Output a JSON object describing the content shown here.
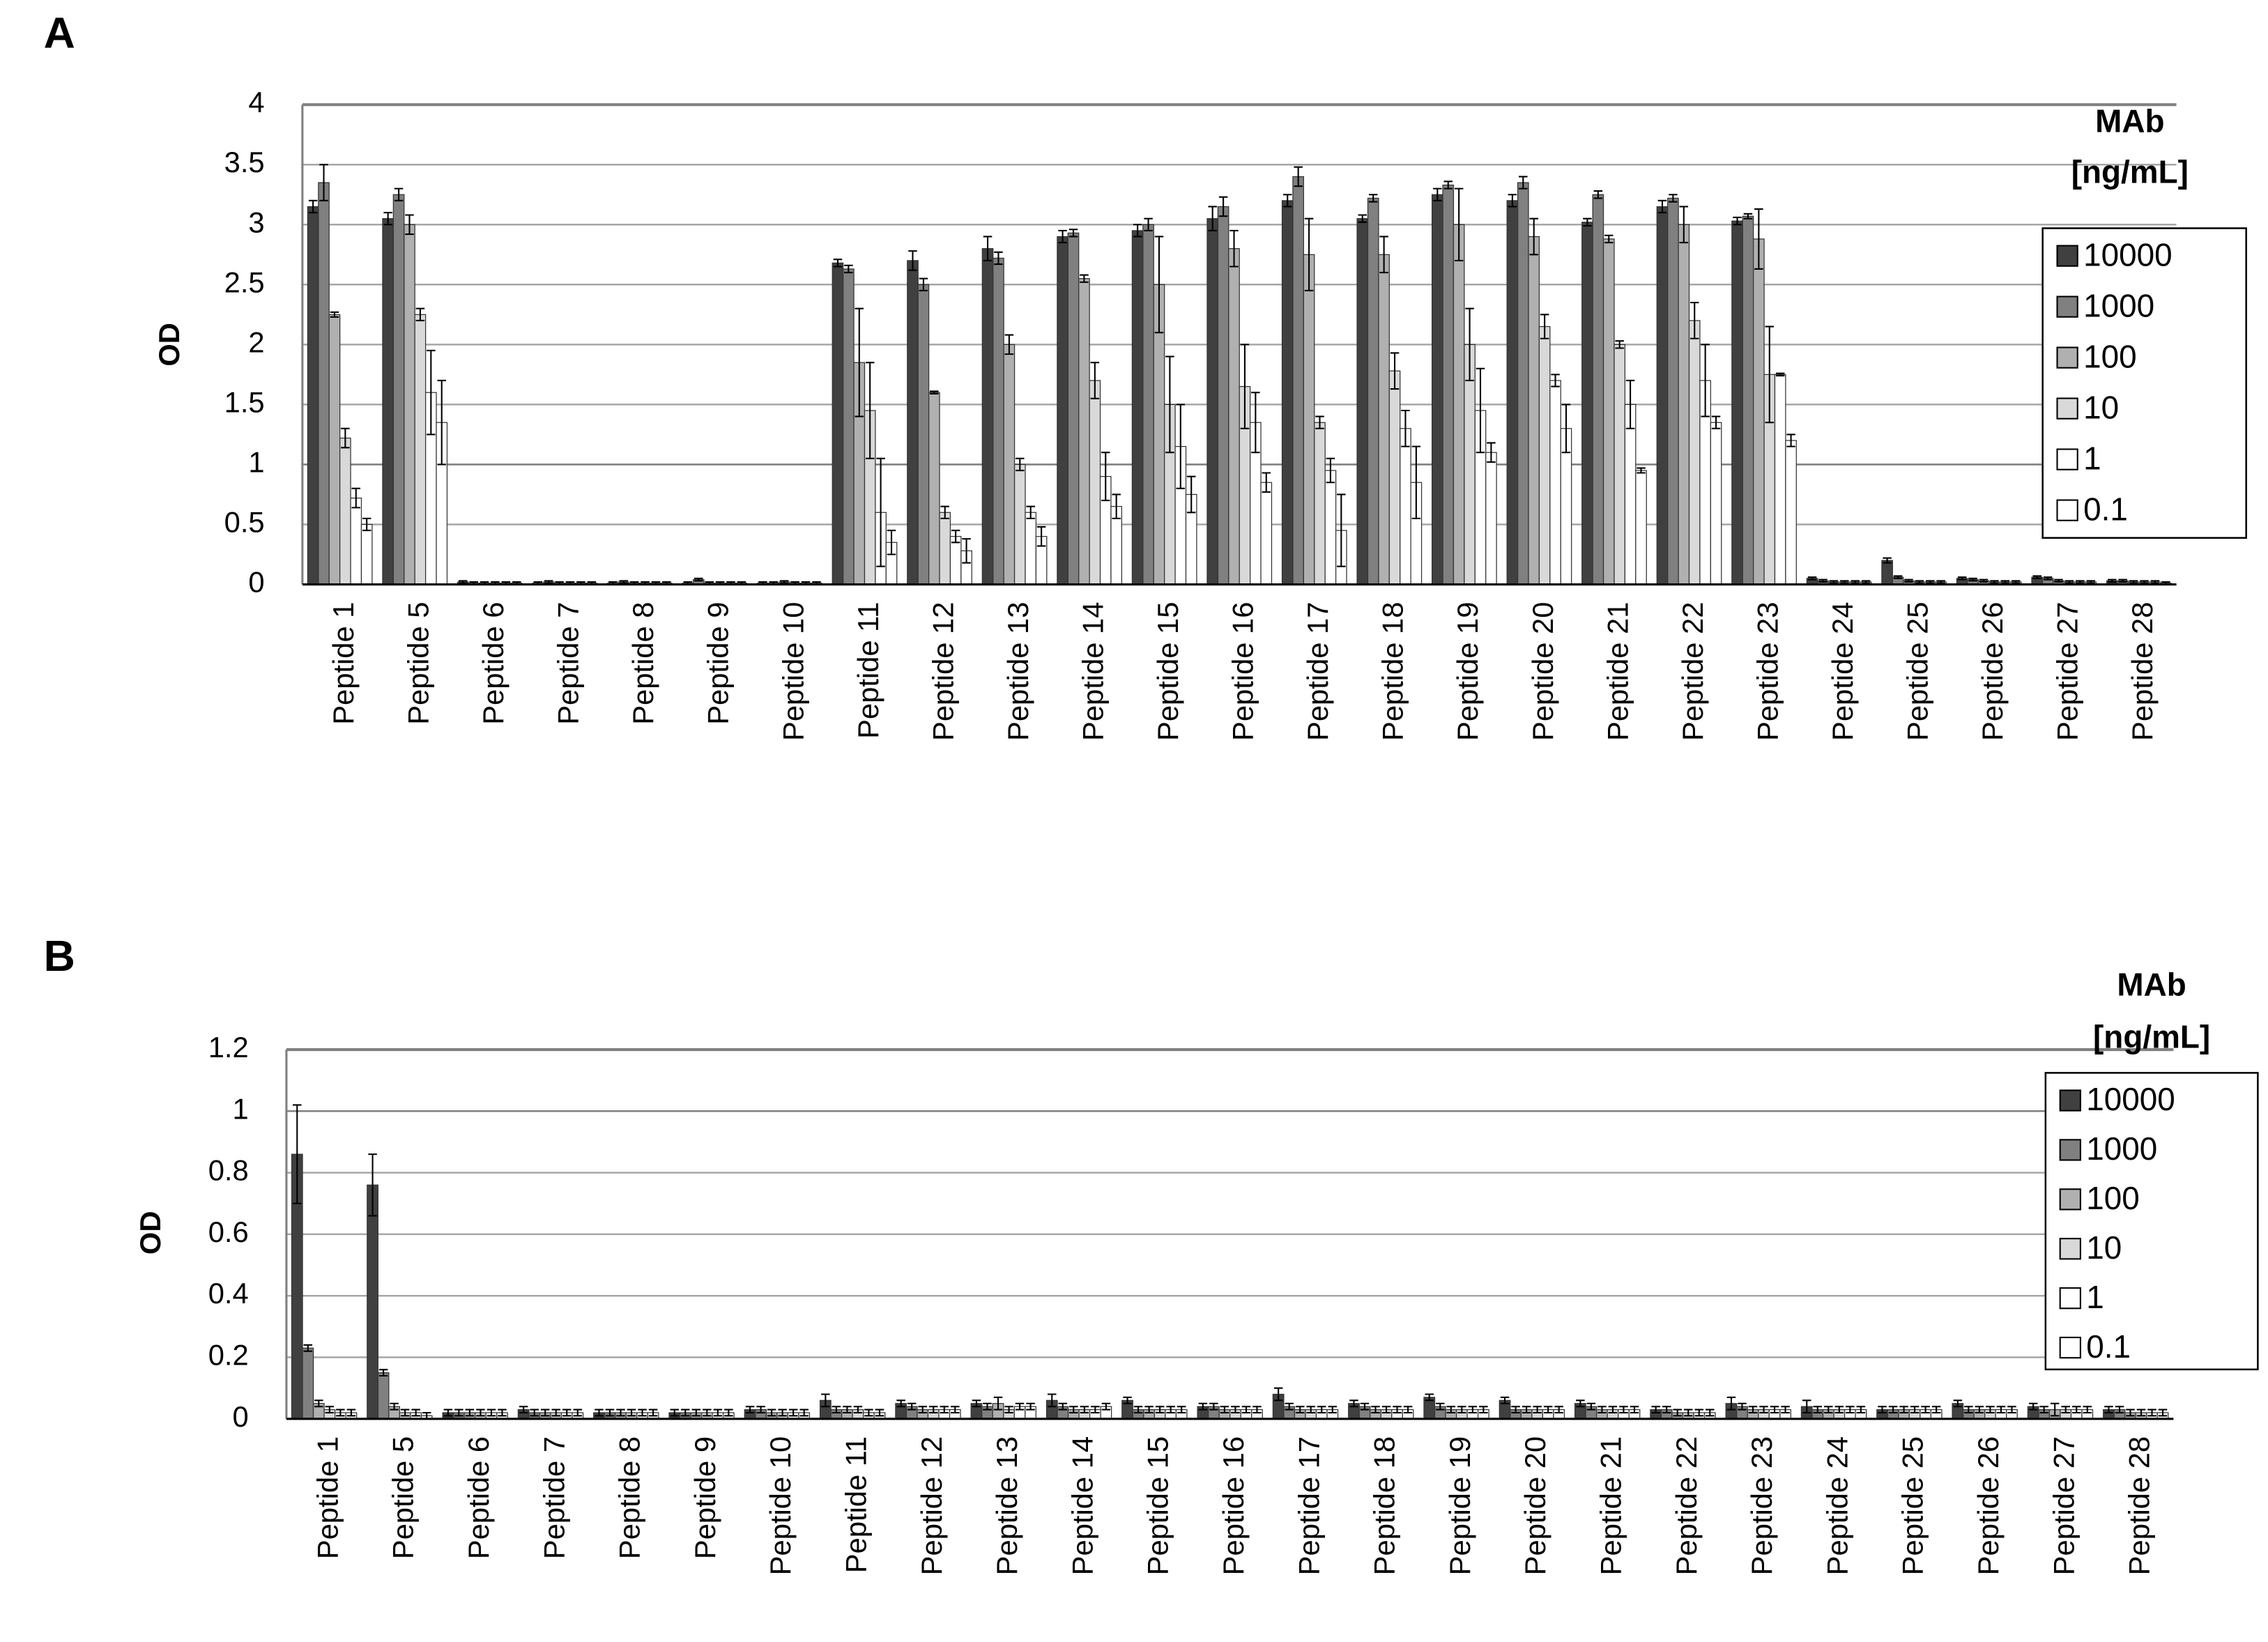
{
  "chart_data": [
    {
      "type": "bar",
      "panel": "A",
      "y_label": "OD",
      "legend_title": [
        "MAb",
        "[ng/mL]"
      ],
      "grid": true,
      "legend": "right",
      "categories": [
        "Peptide 1",
        "Peptide 5",
        "Peptide 6",
        "Peptide 7",
        "Peptide 8",
        "Peptide 9",
        "Peptide 10",
        "Peptide 11",
        "Peptide 12",
        "Peptide 13",
        "Peptide 14",
        "Peptide 15",
        "Peptide 16",
        "Peptide 17",
        "Peptide 18",
        "Peptide 19",
        "Peptide 20",
        "Peptide 21",
        "Peptide 22",
        "Peptide 23",
        "Peptide 24",
        "Peptide 25",
        "Peptide 26",
        "Peptide 27",
        "Peptide 28"
      ],
      "ylim": [
        0,
        4
      ],
      "yticks": [
        0,
        0.5,
        1,
        1.5,
        2,
        2.5,
        3,
        3.5,
        4
      ],
      "series": [
        {
          "name": "10000",
          "color": "#404040",
          "values": [
            3.15,
            3.05,
            0.02,
            0.01,
            0.01,
            0.01,
            0.01,
            2.68,
            2.7,
            2.8,
            2.9,
            2.95,
            3.05,
            3.2,
            3.05,
            3.25,
            3.2,
            3.02,
            3.15,
            3.03,
            0.05,
            0.2,
            0.05,
            0.06,
            0.03
          ],
          "errors": [
            0.05,
            0.05,
            0.01,
            0.01,
            0.01,
            0.01,
            0.01,
            0.03,
            0.08,
            0.1,
            0.05,
            0.05,
            0.1,
            0.05,
            0.03,
            0.05,
            0.05,
            0.03,
            0.05,
            0.03,
            0.01,
            0.02,
            0.01,
            0.01,
            0.01
          ]
        },
        {
          "name": "1000",
          "color": "#808080",
          "values": [
            3.35,
            3.25,
            0.01,
            0.02,
            0.02,
            0.04,
            0.01,
            2.63,
            2.5,
            2.72,
            2.93,
            3.0,
            3.15,
            3.4,
            3.22,
            3.33,
            3.35,
            3.25,
            3.22,
            3.07,
            0.03,
            0.06,
            0.04,
            0.05,
            0.03
          ],
          "errors": [
            0.15,
            0.05,
            0.01,
            0.01,
            0.01,
            0.01,
            0.01,
            0.03,
            0.05,
            0.05,
            0.03,
            0.05,
            0.08,
            0.08,
            0.03,
            0.03,
            0.05,
            0.03,
            0.03,
            0.02,
            0.01,
            0.01,
            0.01,
            0.01,
            0.01
          ]
        },
        {
          "name": "100",
          "color": "#b0b0b0",
          "values": [
            2.25,
            3.0,
            0.01,
            0.01,
            0.01,
            0.01,
            0.02,
            1.85,
            1.6,
            2.0,
            2.55,
            2.5,
            2.8,
            2.75,
            2.75,
            3.0,
            2.9,
            2.88,
            3.0,
            2.88,
            0.02,
            0.03,
            0.03,
            0.03,
            0.02
          ],
          "errors": [
            0.02,
            0.08,
            0.01,
            0.01,
            0.01,
            0.01,
            0.01,
            0.45,
            0.01,
            0.08,
            0.03,
            0.4,
            0.15,
            0.3,
            0.15,
            0.3,
            0.15,
            0.03,
            0.15,
            0.25,
            0.01,
            0.01,
            0.01,
            0.01,
            0.01
          ]
        },
        {
          "name": "10",
          "color": "#d9d9d9",
          "values": [
            1.22,
            2.25,
            0.01,
            0.01,
            0.01,
            0.01,
            0.01,
            1.45,
            0.6,
            1.0,
            1.7,
            1.5,
            1.65,
            1.35,
            1.78,
            2.0,
            2.15,
            2.0,
            2.2,
            1.75,
            0.02,
            0.02,
            0.02,
            0.02,
            0.02
          ],
          "errors": [
            0.08,
            0.05,
            0.01,
            0.01,
            0.01,
            0.01,
            0.01,
            0.4,
            0.05,
            0.05,
            0.15,
            0.4,
            0.35,
            0.05,
            0.15,
            0.3,
            0.1,
            0.03,
            0.15,
            0.4,
            0.01,
            0.01,
            0.01,
            0.01,
            0.01
          ]
        },
        {
          "name": "1",
          "color": "#ffffff",
          "values": [
            0.72,
            1.6,
            0.01,
            0.01,
            0.01,
            0.01,
            0.01,
            0.6,
            0.4,
            0.6,
            0.9,
            1.15,
            1.35,
            0.95,
            1.3,
            1.45,
            1.7,
            1.5,
            1.7,
            1.75,
            0.02,
            0.02,
            0.02,
            0.02,
            0.02
          ],
          "errors": [
            0.08,
            0.35,
            0.01,
            0.01,
            0.01,
            0.01,
            0.01,
            0.45,
            0.05,
            0.05,
            0.2,
            0.35,
            0.25,
            0.1,
            0.15,
            0.35,
            0.05,
            0.2,
            0.3,
            0.01,
            0.01,
            0.01,
            0.01,
            0.01,
            0.01
          ]
        },
        {
          "name": "0.1",
          "color": "#ffffff",
          "values": [
            0.5,
            1.35,
            0.01,
            0.01,
            0.01,
            0.01,
            0.01,
            0.35,
            0.28,
            0.4,
            0.65,
            0.75,
            0.85,
            0.45,
            0.85,
            1.1,
            1.3,
            0.95,
            1.35,
            1.2,
            0.02,
            0.02,
            0.02,
            0.02,
            0.01
          ],
          "errors": [
            0.05,
            0.35,
            0.01,
            0.01,
            0.01,
            0.01,
            0.01,
            0.1,
            0.1,
            0.08,
            0.1,
            0.15,
            0.08,
            0.3,
            0.3,
            0.08,
            0.2,
            0.02,
            0.05,
            0.05,
            0.01,
            0.01,
            0.01,
            0.01,
            0.01
          ]
        }
      ]
    },
    {
      "type": "bar",
      "panel": "B",
      "y_label": "OD",
      "legend_title": [
        "MAb",
        "[ng/mL]"
      ],
      "grid": true,
      "legend": "right",
      "categories": [
        "Peptide 1",
        "Peptide 5",
        "Peptide 6",
        "Peptide 7",
        "Peptide 8",
        "Peptide 9",
        "Peptide 10",
        "Peptide 11",
        "Peptide 12",
        "Peptide 13",
        "Peptide 14",
        "Peptide 15",
        "Peptide 16",
        "Peptide 17",
        "Peptide 18",
        "Peptide 19",
        "Peptide 20",
        "Peptide 21",
        "Peptide 22",
        "Peptide 23",
        "Peptide 24",
        "Peptide 25",
        "Peptide 26",
        "Peptide 27",
        "Peptide 28"
      ],
      "ylim": [
        0,
        1.2
      ],
      "yticks": [
        0,
        0.2,
        0.4,
        0.6,
        0.8,
        1,
        1.2
      ],
      "series": [
        {
          "name": "10000",
          "color": "#404040",
          "values": [
            0.86,
            0.76,
            0.02,
            0.03,
            0.02,
            0.02,
            0.03,
            0.06,
            0.05,
            0.05,
            0.06,
            0.06,
            0.04,
            0.08,
            0.05,
            0.07,
            0.06,
            0.05,
            0.03,
            0.05,
            0.04,
            0.03,
            0.05,
            0.04,
            0.03
          ],
          "errors": [
            0.16,
            0.1,
            0.01,
            0.01,
            0.01,
            0.01,
            0.01,
            0.02,
            0.01,
            0.01,
            0.02,
            0.01,
            0.01,
            0.02,
            0.01,
            0.01,
            0.01,
            0.01,
            0.01,
            0.02,
            0.02,
            0.01,
            0.01,
            0.01,
            0.01
          ]
        },
        {
          "name": "1000",
          "color": "#808080",
          "values": [
            0.23,
            0.15,
            0.02,
            0.02,
            0.02,
            0.02,
            0.03,
            0.03,
            0.04,
            0.04,
            0.04,
            0.03,
            0.04,
            0.04,
            0.04,
            0.04,
            0.03,
            0.04,
            0.03,
            0.04,
            0.03,
            0.03,
            0.03,
            0.03,
            0.03
          ],
          "errors": [
            0.01,
            0.01,
            0.01,
            0.01,
            0.01,
            0.01,
            0.01,
            0.01,
            0.01,
            0.01,
            0.01,
            0.01,
            0.01,
            0.01,
            0.01,
            0.01,
            0.01,
            0.01,
            0.01,
            0.01,
            0.01,
            0.01,
            0.01,
            0.01,
            0.01
          ]
        },
        {
          "name": "100",
          "color": "#b0b0b0",
          "values": [
            0.05,
            0.04,
            0.02,
            0.02,
            0.02,
            0.02,
            0.02,
            0.03,
            0.03,
            0.05,
            0.03,
            0.03,
            0.03,
            0.03,
            0.03,
            0.03,
            0.03,
            0.03,
            0.02,
            0.03,
            0.03,
            0.03,
            0.03,
            0.03,
            0.02
          ],
          "errors": [
            0.01,
            0.01,
            0.01,
            0.01,
            0.01,
            0.01,
            0.01,
            0.01,
            0.01,
            0.02,
            0.01,
            0.01,
            0.01,
            0.01,
            0.01,
            0.01,
            0.01,
            0.01,
            0.01,
            0.01,
            0.01,
            0.01,
            0.01,
            0.02,
            0.01
          ]
        },
        {
          "name": "10",
          "color": "#d9d9d9",
          "values": [
            0.03,
            0.02,
            0.02,
            0.02,
            0.02,
            0.02,
            0.02,
            0.03,
            0.03,
            0.03,
            0.03,
            0.03,
            0.03,
            0.03,
            0.03,
            0.03,
            0.03,
            0.03,
            0.02,
            0.03,
            0.03,
            0.03,
            0.03,
            0.03,
            0.02
          ],
          "errors": [
            0.01,
            0.01,
            0.01,
            0.01,
            0.01,
            0.01,
            0.01,
            0.01,
            0.01,
            0.01,
            0.01,
            0.01,
            0.01,
            0.01,
            0.01,
            0.01,
            0.01,
            0.01,
            0.01,
            0.01,
            0.01,
            0.01,
            0.01,
            0.01,
            0.01
          ]
        },
        {
          "name": "1",
          "color": "#ffffff",
          "values": [
            0.02,
            0.02,
            0.02,
            0.02,
            0.02,
            0.02,
            0.02,
            0.02,
            0.03,
            0.04,
            0.03,
            0.03,
            0.03,
            0.03,
            0.03,
            0.03,
            0.03,
            0.03,
            0.02,
            0.03,
            0.03,
            0.03,
            0.03,
            0.03,
            0.02
          ],
          "errors": [
            0.01,
            0.01,
            0.01,
            0.01,
            0.01,
            0.01,
            0.01,
            0.01,
            0.01,
            0.01,
            0.01,
            0.01,
            0.01,
            0.01,
            0.01,
            0.01,
            0.01,
            0.01,
            0.01,
            0.01,
            0.01,
            0.01,
            0.01,
            0.01,
            0.01
          ]
        },
        {
          "name": "0.1",
          "color": "#ffffff",
          "values": [
            0.02,
            0.01,
            0.02,
            0.02,
            0.02,
            0.02,
            0.02,
            0.02,
            0.03,
            0.04,
            0.04,
            0.03,
            0.03,
            0.03,
            0.03,
            0.03,
            0.03,
            0.03,
            0.02,
            0.03,
            0.03,
            0.03,
            0.03,
            0.03,
            0.02
          ],
          "errors": [
            0.01,
            0.01,
            0.01,
            0.01,
            0.01,
            0.01,
            0.01,
            0.01,
            0.01,
            0.01,
            0.01,
            0.01,
            0.01,
            0.01,
            0.01,
            0.01,
            0.01,
            0.01,
            0.01,
            0.01,
            0.01,
            0.01,
            0.01,
            0.01,
            0.01
          ]
        }
      ]
    }
  ]
}
